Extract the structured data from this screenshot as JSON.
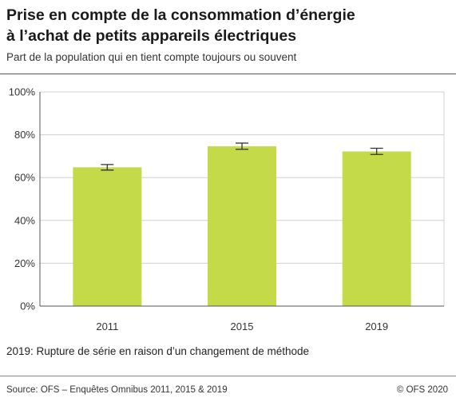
{
  "title_line1": "Prise en compte de la consommation d’énergie",
  "title_line2": "à l’achat de petits appareils électriques",
  "subtitle": "Part de la population qui en tient compte toujours ou souvent",
  "note": "2019: Rupture de série en raison d’un changement de méthode",
  "source": "Source: OFS – Enquêtes Omnibus 2011, 2015 & 2019",
  "copyright": "© OFS 2020",
  "colors": {
    "bar": "#c5da48",
    "grid": "#d0d0d0",
    "axis": "#555555",
    "error": "#333333"
  },
  "chart_data": {
    "type": "bar",
    "categories": [
      "2011",
      "2015",
      "2019"
    ],
    "values": [
      64.8,
      74.6,
      72.2
    ],
    "error_low": [
      63.5,
      73.2,
      70.8
    ],
    "error_high": [
      66.1,
      76.1,
      73.7
    ],
    "ylim": [
      0,
      100
    ],
    "yticks": [
      0,
      20,
      40,
      60,
      80,
      100
    ],
    "ytick_labels": [
      "0%",
      "20%",
      "40%",
      "60%",
      "80%",
      "100%"
    ],
    "grid": true,
    "legend": "none"
  }
}
